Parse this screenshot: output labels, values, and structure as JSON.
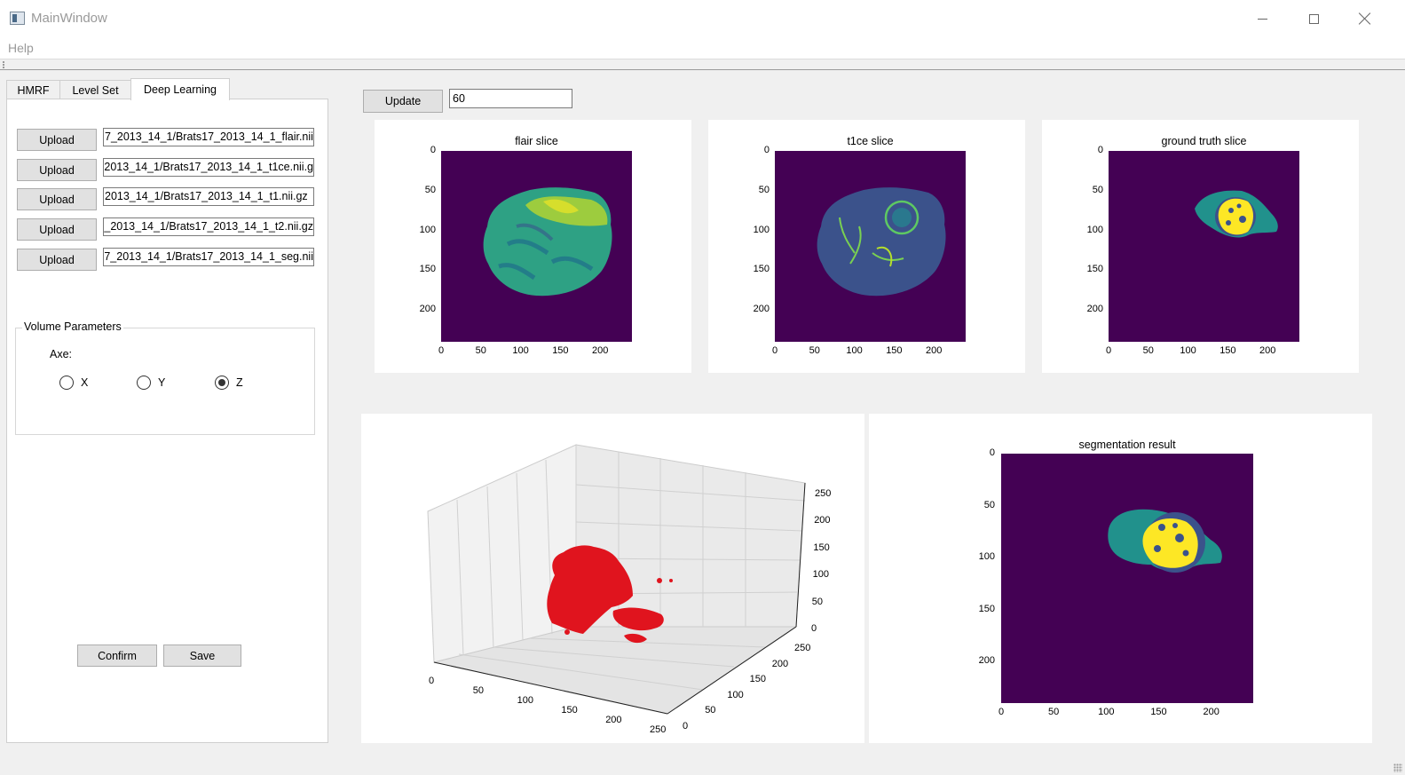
{
  "window": {
    "title": "MainWindow"
  },
  "menu": {
    "help": "Help"
  },
  "tabs": [
    {
      "label": "HMRF",
      "active": false
    },
    {
      "label": "Level Set",
      "active": false
    },
    {
      "label": "Deep Learning",
      "active": true
    }
  ],
  "uploads": [
    {
      "button": "Upload",
      "path": "7_2013_14_1/Brats17_2013_14_1_flair.nii"
    },
    {
      "button": "Upload",
      "path": "2013_14_1/Brats17_2013_14_1_t1ce.nii.g"
    },
    {
      "button": "Upload",
      "path": "2013_14_1/Brats17_2013_14_1_t1.nii.gz"
    },
    {
      "button": "Upload",
      "path": "_2013_14_1/Brats17_2013_14_1_t2.nii.gz"
    },
    {
      "button": "Upload",
      "path": "7_2013_14_1/Brats17_2013_14_1_seg.nii"
    }
  ],
  "volume_parameters": {
    "title": "Volume Parameters",
    "axe_label": "Axe:",
    "options": [
      {
        "label": "X",
        "checked": false
      },
      {
        "label": "Y",
        "checked": false
      },
      {
        "label": "Z",
        "checked": true
      }
    ]
  },
  "actions": {
    "confirm": "Confirm",
    "save": "Save"
  },
  "controls": {
    "update": "Update",
    "slice_value": "60"
  },
  "chart_data": [
    {
      "type": "heatmap",
      "title": "flair slice",
      "xticks": [
        "0",
        "50",
        "100",
        "150",
        "200"
      ],
      "yticks": [
        "0",
        "50",
        "100",
        "150",
        "200"
      ],
      "xlim": [
        0,
        240
      ],
      "ylim": [
        240,
        0
      ],
      "colormap": "viridis"
    },
    {
      "type": "heatmap",
      "title": "t1ce slice",
      "xticks": [
        "0",
        "50",
        "100",
        "150",
        "200"
      ],
      "yticks": [
        "0",
        "50",
        "100",
        "150",
        "200"
      ],
      "xlim": [
        0,
        240
      ],
      "ylim": [
        240,
        0
      ],
      "colormap": "viridis"
    },
    {
      "type": "heatmap",
      "title": "ground truth slice",
      "xticks": [
        "0",
        "50",
        "100",
        "150",
        "200"
      ],
      "yticks": [
        "0",
        "50",
        "100",
        "150",
        "200"
      ],
      "xlim": [
        0,
        240
      ],
      "ylim": [
        240,
        0
      ],
      "colormap": "viridis"
    },
    {
      "type": "scatter",
      "title": "",
      "projection": "3d",
      "xticks": [
        "0",
        "50",
        "100",
        "150",
        "200",
        "250"
      ],
      "yticks": [
        "0",
        "50",
        "100",
        "150",
        "200",
        "250"
      ],
      "zticks": [
        "0",
        "50",
        "100",
        "150",
        "200",
        "250"
      ],
      "marker_color": "#e0141e"
    },
    {
      "type": "heatmap",
      "title": "segmentation result",
      "xticks": [
        "0",
        "50",
        "100",
        "150",
        "200"
      ],
      "yticks": [
        "0",
        "50",
        "100",
        "150",
        "200"
      ],
      "xlim": [
        0,
        240
      ],
      "ylim": [
        240,
        0
      ],
      "colormap": "viridis"
    }
  ],
  "colors": {
    "background": "#440154",
    "teal": "#21918c",
    "navy": "#3b528b",
    "yellow": "#fde725",
    "green": "#35b779"
  }
}
